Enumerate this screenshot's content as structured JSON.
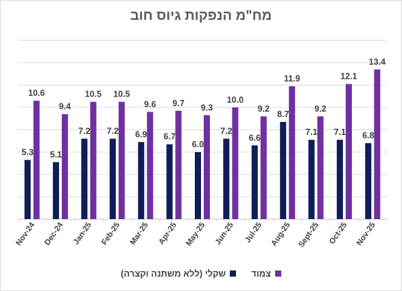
{
  "chart_data": {
    "type": "bar",
    "title": "מח\"מ הנפקות גיוס חוב",
    "xlabel": "",
    "ylabel": "",
    "ylim": [
      0,
      16
    ],
    "grid": true,
    "legend_position": "bottom",
    "categories": [
      "Nov-24",
      "Dec-24",
      "Jan-25",
      "Feb-25",
      "Mar-25",
      "Apr-25",
      "May-25",
      "Jun-25",
      "Jul-25",
      "Aug-25",
      "Sept-25",
      "Oct-25",
      "Nov-25"
    ],
    "series": [
      {
        "name": "שקלי (ללא משתנה וקצרה)",
        "color": "#0f1d5a",
        "values": [
          5.3,
          5.1,
          7.2,
          7.2,
          6.9,
          6.7,
          6.0,
          7.2,
          6.6,
          8.7,
          7.1,
          7.1,
          6.8
        ],
        "labels": [
          "5.3",
          "5.1",
          "7.2",
          "7.2",
          "6.9",
          "6.7",
          "6.0",
          "7.2",
          "6.6",
          "8.7",
          "7.1",
          "7.1",
          "6.8"
        ]
      },
      {
        "name": "צמוד",
        "color": "#7030a0",
        "values": [
          10.6,
          9.4,
          10.5,
          10.5,
          9.6,
          9.7,
          9.3,
          10.0,
          9.2,
          11.9,
          9.2,
          12.1,
          13.4
        ],
        "labels": [
          "10.6",
          "9.4",
          "10.5",
          "10.5",
          "9.6",
          "9.7",
          "9.3",
          "10.0",
          "9.2",
          "11.9",
          "9.2",
          "12.1",
          "13.4"
        ]
      }
    ]
  }
}
